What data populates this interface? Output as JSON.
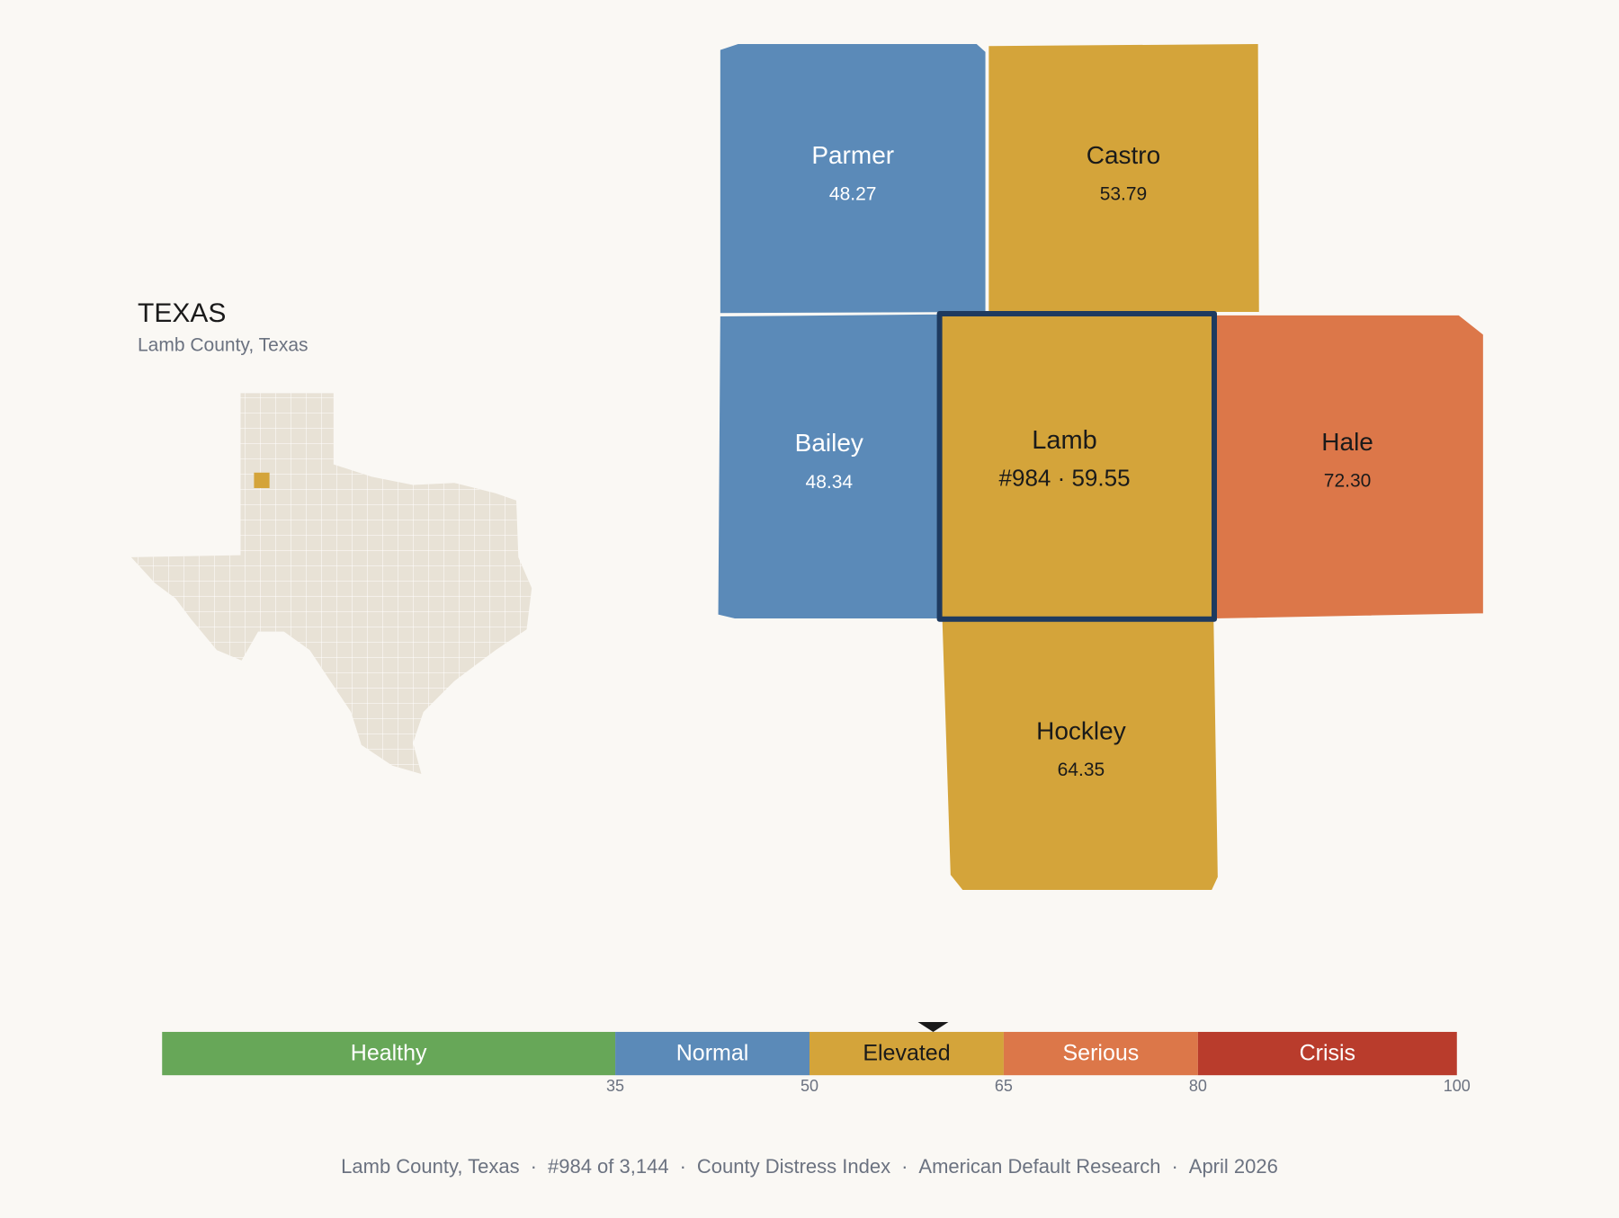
{
  "header": {
    "title": "TEXAS",
    "subtitle": "Lamb County, Texas"
  },
  "counties": [
    {
      "name": "Parmer",
      "value": "48.27",
      "color": "#5b8ab8",
      "text_color": "#ffffff"
    },
    {
      "name": "Castro",
      "value": "53.79",
      "color": "#d4a43a",
      "text_color": "#1a1a1a"
    },
    {
      "name": "Bailey",
      "value": "48.34",
      "color": "#5b8ab8",
      "text_color": "#ffffff"
    },
    {
      "name": "Lamb",
      "value": "#984 · 59.55",
      "color": "#d4a43a",
      "text_color": "#1a1a1a",
      "selected": true
    },
    {
      "name": "Hale",
      "value": "72.30",
      "color": "#dc7749",
      "text_color": "#1a1a1a"
    },
    {
      "name": "Hockley",
      "value": "64.35",
      "color": "#d4a43a",
      "text_color": "#1a1a1a"
    }
  ],
  "scale": {
    "range": [
      0,
      100
    ],
    "marker": 59.55,
    "bands": [
      {
        "label": "Healthy",
        "color": "#67a758",
        "text_color": "#ffffff"
      },
      {
        "label": "Normal",
        "color": "#5b8ab8",
        "text_color": "#ffffff"
      },
      {
        "label": "Elevated",
        "color": "#d4a43a",
        "text_color": "#1a1a1a"
      },
      {
        "label": "Serious",
        "color": "#dc7749",
        "text_color": "#ffffff"
      },
      {
        "label": "Crisis",
        "color": "#b93c2c",
        "text_color": "#ffffff"
      }
    ],
    "ticks": [
      35,
      50,
      65,
      80,
      100
    ]
  },
  "footer": {
    "parts": [
      "Lamb County, Texas",
      "#984 of 3,144",
      "County Distress Index",
      "American Default Research",
      "April 2026"
    ],
    "separator": "·"
  }
}
